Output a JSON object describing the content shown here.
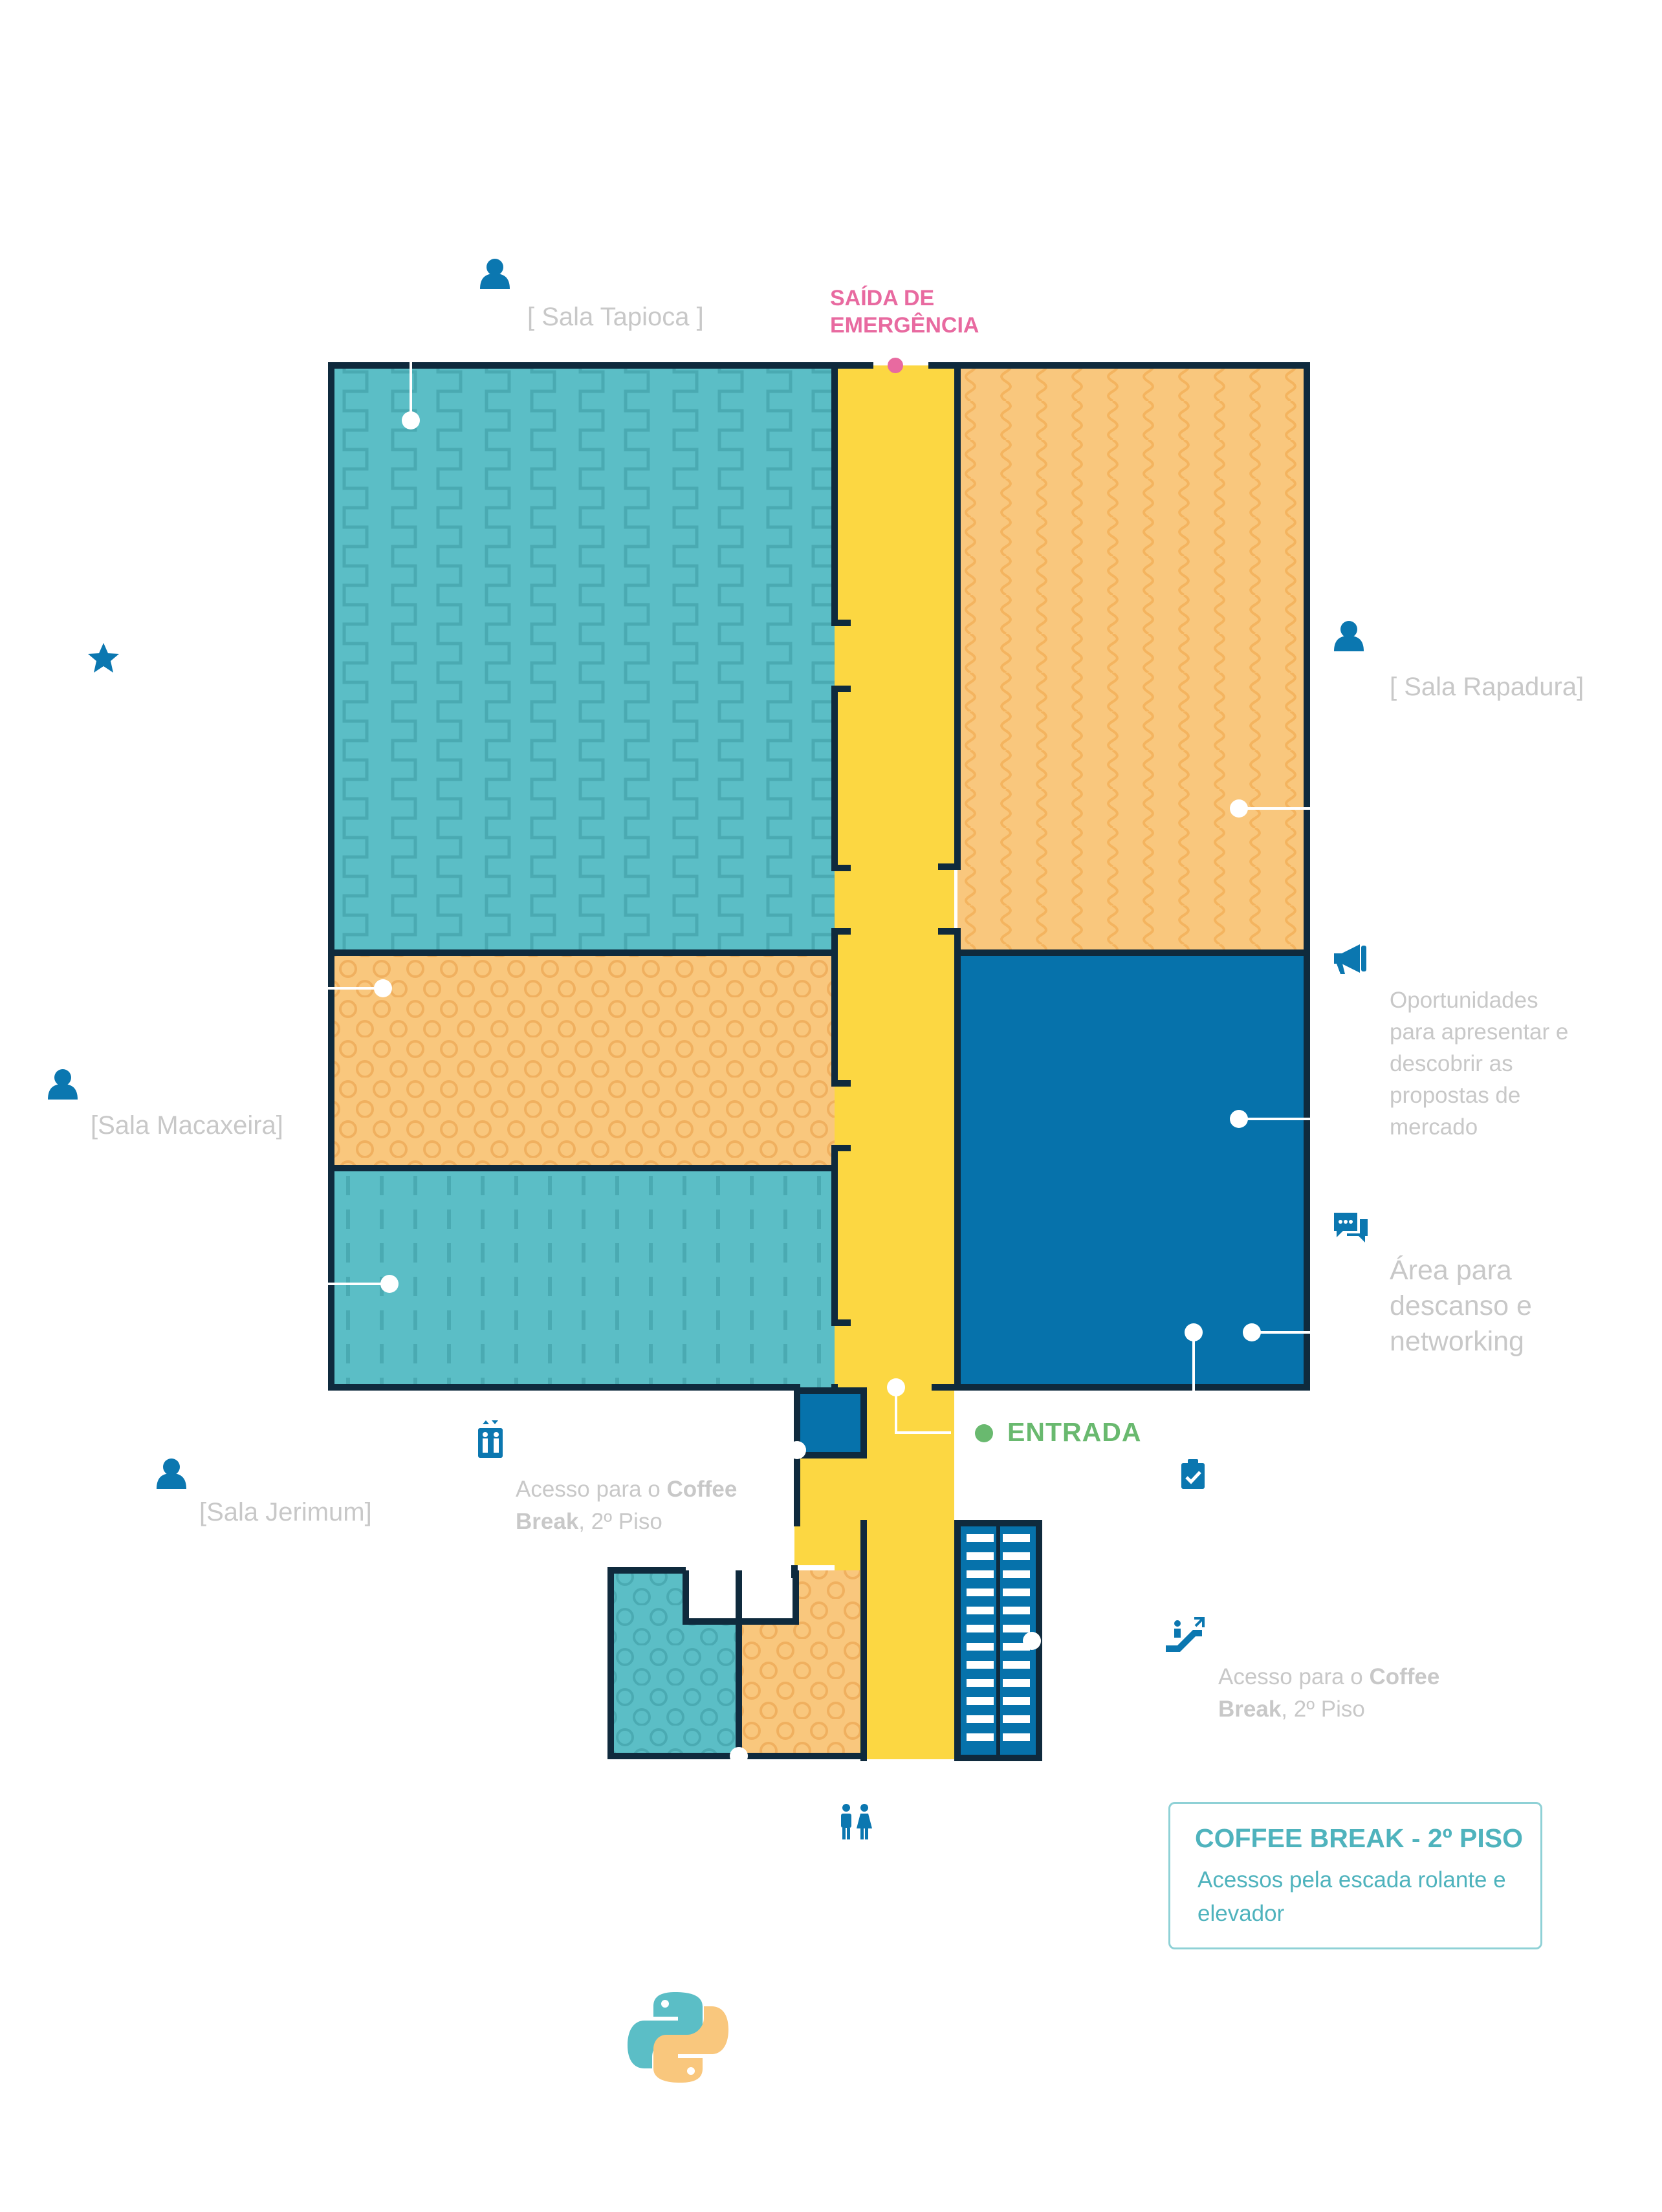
{
  "colors": {
    "wall": "#0f2a3d",
    "teal_room": "#5bbec6",
    "orange_room": "#f9c77d",
    "blue_room": "#0672ab",
    "corridor": "#fcd742",
    "icon_blue": "#0b77b0",
    "emergency_pink": "#e86aa0",
    "entrance_green": "#69b96f",
    "label_gray": "#c8c8c8",
    "legend_teal": "#4fb3bd"
  },
  "labels": {
    "emergency_exit": "SAÍDA DE EMERGÊNCIA",
    "entrance": "ENTRADA",
    "sala_tapioca": "[ Sala Tapioca ]",
    "sala_rapadura": "[ Sala Rapadura]",
    "sala_macaxeira": "[Sala Macaxeira]",
    "sala_jerimum": "[Sala Jerimum]",
    "oportunidades": "Oportunidades para apresentar e descobrir as propostas de mercado",
    "descanso": "Área para descanso e networking"
  },
  "access_elevator": {
    "prefix": "Acesso para o ",
    "bold1": "Coffee",
    "bold2": "Break",
    "suffix": ", 2º Piso"
  },
  "access_escalator": {
    "prefix": "Acesso para o ",
    "bold1": "Coffee",
    "bold2": "Break",
    "suffix": ", 2º Piso"
  },
  "legend": {
    "title": "COFFEE BREAK - 2º PISO",
    "subtitle": "Acessos pela escada rolante e elevador"
  },
  "icons": [
    "person-icon",
    "star-icon",
    "megaphone-icon",
    "chat-bubbles-icon",
    "elevator-icon",
    "checklist-icon",
    "escalator-icon",
    "restroom-icon",
    "python-logo"
  ]
}
